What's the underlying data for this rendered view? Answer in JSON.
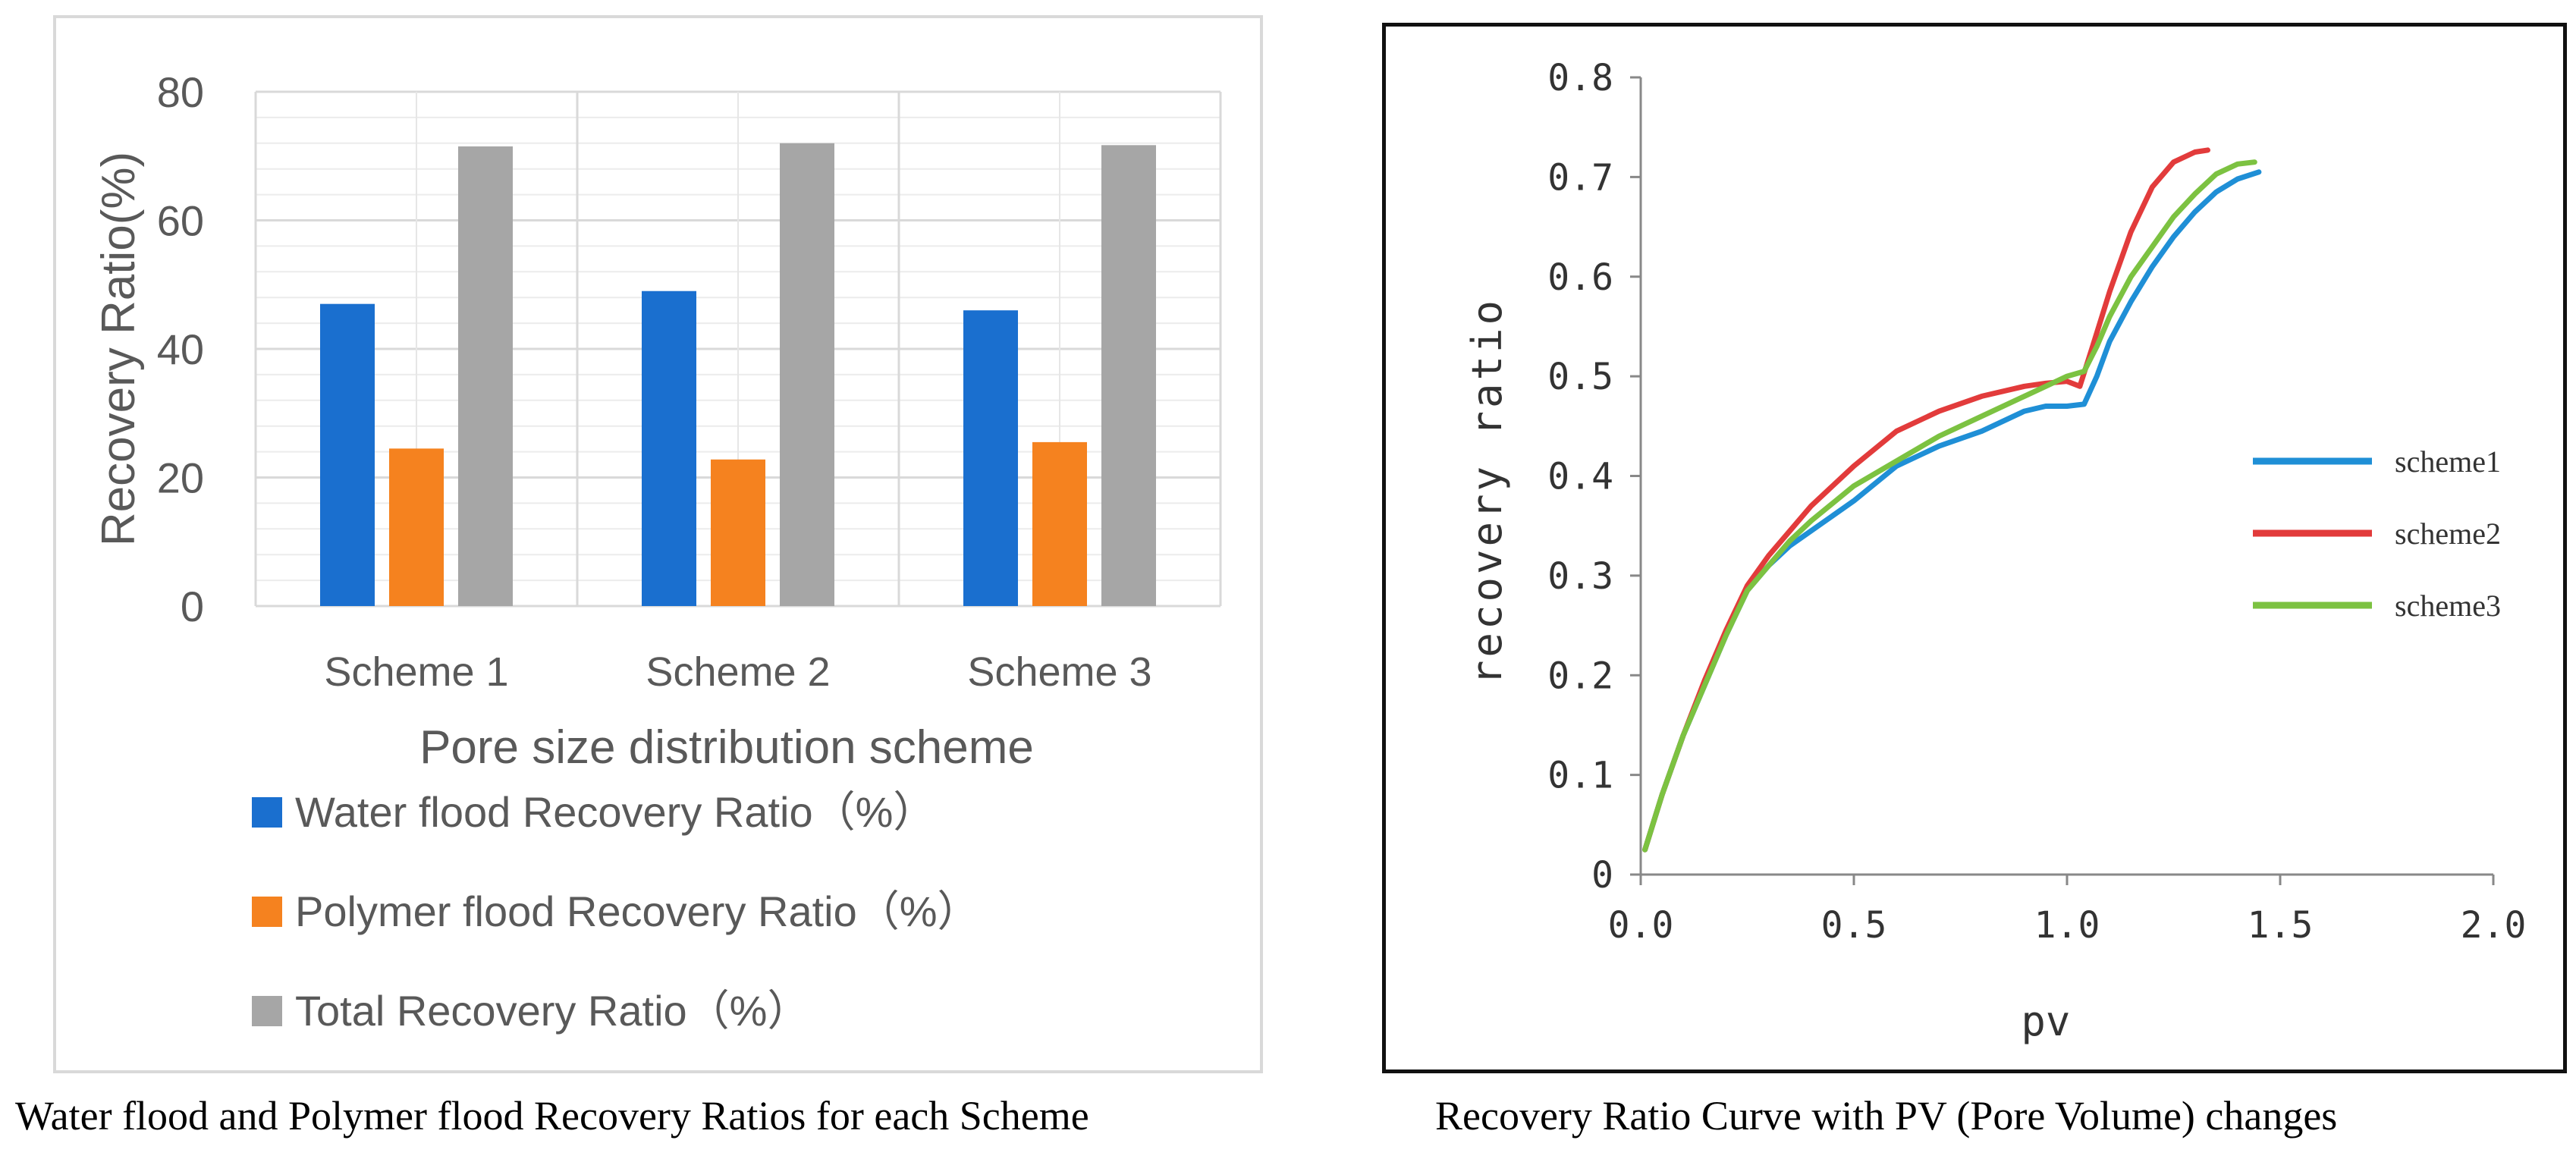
{
  "captions": {
    "left": "Water flood and Polymer flood Recovery Ratios for each Scheme",
    "right": "Recovery Ratio Curve with PV (Pore Volume) changes"
  },
  "colors": {
    "water": "#1a6fcf",
    "polymer": "#f5821f",
    "total": "#a6a6a6",
    "scheme1": "#1f8fd6",
    "scheme2": "#e23b3b",
    "scheme3": "#7cc241"
  },
  "chart_data": [
    {
      "type": "bar",
      "title": "",
      "xlabel": "Pore size distribution scheme",
      "ylabel": "Recovery Ratio(%)",
      "ylim": [
        0,
        80
      ],
      "yticks": [
        "0",
        "20",
        "40",
        "60",
        "80"
      ],
      "categories": [
        "Scheme 1",
        "Scheme 2",
        "Scheme 3"
      ],
      "series": [
        {
          "name": "Water flood Recovery Ratio（%）",
          "values": [
            47,
            49,
            46
          ]
        },
        {
          "name": "Polymer flood Recovery Ratio（%）",
          "values": [
            24.5,
            22.8,
            25.5
          ]
        },
        {
          "name": "Total Recovery Ratio（%）",
          "values": [
            71.5,
            72,
            71.7
          ]
        }
      ],
      "legend_position": "bottom"
    },
    {
      "type": "line",
      "title": "",
      "xlabel": "pv",
      "ylabel": "recovery ratio",
      "xlim": [
        0,
        2.0
      ],
      "ylim": [
        0,
        0.8
      ],
      "xticks": [
        "0.0",
        "0.5",
        "1.0",
        "1.5",
        "2.0"
      ],
      "yticks": [
        "0",
        "0.1",
        "0.2",
        "0.3",
        "0.4",
        "0.5",
        "0.6",
        "0.7",
        "0.8"
      ],
      "legend_position": "right",
      "series": [
        {
          "name": "scheme1",
          "x": [
            0.01,
            0.05,
            0.1,
            0.15,
            0.2,
            0.25,
            0.3,
            0.35,
            0.4,
            0.5,
            0.6,
            0.7,
            0.8,
            0.9,
            0.95,
            1.0,
            1.04,
            1.07,
            1.1,
            1.15,
            1.2,
            1.25,
            1.3,
            1.35,
            1.4,
            1.45
          ],
          "y": [
            0.025,
            0.08,
            0.14,
            0.19,
            0.24,
            0.285,
            0.31,
            0.33,
            0.345,
            0.375,
            0.41,
            0.43,
            0.445,
            0.465,
            0.47,
            0.47,
            0.472,
            0.5,
            0.535,
            0.575,
            0.61,
            0.64,
            0.665,
            0.685,
            0.698,
            0.705
          ]
        },
        {
          "name": "scheme2",
          "x": [
            0.01,
            0.05,
            0.1,
            0.15,
            0.2,
            0.25,
            0.3,
            0.35,
            0.4,
            0.5,
            0.6,
            0.7,
            0.8,
            0.9,
            0.95,
            1.0,
            1.03,
            1.06,
            1.1,
            1.15,
            1.2,
            1.25,
            1.3,
            1.33
          ],
          "y": [
            0.025,
            0.08,
            0.14,
            0.195,
            0.245,
            0.29,
            0.32,
            0.345,
            0.37,
            0.41,
            0.445,
            0.465,
            0.48,
            0.49,
            0.493,
            0.495,
            0.49,
            0.53,
            0.585,
            0.645,
            0.69,
            0.715,
            0.725,
            0.727
          ]
        },
        {
          "name": "scheme3",
          "x": [
            0.01,
            0.05,
            0.1,
            0.15,
            0.2,
            0.25,
            0.3,
            0.35,
            0.4,
            0.5,
            0.6,
            0.7,
            0.8,
            0.9,
            0.95,
            1.0,
            1.04,
            1.07,
            1.1,
            1.15,
            1.2,
            1.25,
            1.3,
            1.35,
            1.4,
            1.44
          ],
          "y": [
            0.025,
            0.08,
            0.14,
            0.19,
            0.24,
            0.285,
            0.31,
            0.335,
            0.355,
            0.39,
            0.415,
            0.44,
            0.46,
            0.48,
            0.49,
            0.5,
            0.505,
            0.53,
            0.56,
            0.6,
            0.63,
            0.66,
            0.683,
            0.703,
            0.713,
            0.715
          ]
        }
      ]
    }
  ]
}
